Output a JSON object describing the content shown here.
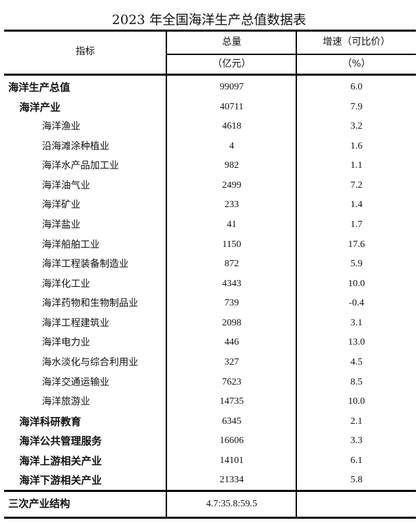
{
  "title": "2023 年全国海洋生产总值数据表",
  "headers": {
    "indicator": "指标",
    "total": "总量",
    "total_unit": "（亿元）",
    "growth": "增速（可比价）",
    "growth_unit": "（%）"
  },
  "rows": [
    {
      "name": "海洋生产总值",
      "total": "99097",
      "growth": "6.0",
      "level": 0
    },
    {
      "name": "海洋产业",
      "total": "40711",
      "growth": "7.9",
      "level": 1
    },
    {
      "name": "海洋渔业",
      "total": "4618",
      "growth": "3.2",
      "level": 2
    },
    {
      "name": "沿海滩涂种植业",
      "total": "4",
      "growth": "1.6",
      "level": 2
    },
    {
      "name": "海洋水产品加工业",
      "total": "982",
      "growth": "1.1",
      "level": 2
    },
    {
      "name": "海洋油气业",
      "total": "2499",
      "growth": "7.2",
      "level": 2
    },
    {
      "name": "海洋矿业",
      "total": "233",
      "growth": "1.4",
      "level": 2
    },
    {
      "name": "海洋盐业",
      "total": "41",
      "growth": "1.7",
      "level": 2
    },
    {
      "name": "海洋船舶工业",
      "total": "1150",
      "growth": "17.6",
      "level": 2
    },
    {
      "name": "海洋工程装备制造业",
      "total": "872",
      "growth": "5.9",
      "level": 2
    },
    {
      "name": "海洋化工业",
      "total": "4343",
      "growth": "10.0",
      "level": 2
    },
    {
      "name": "海洋药物和生物制品业",
      "total": "739",
      "growth": "-0.4",
      "level": 2
    },
    {
      "name": "海洋工程建筑业",
      "total": "2098",
      "growth": "3.1",
      "level": 2
    },
    {
      "name": "海洋电力业",
      "total": "446",
      "growth": "13.0",
      "level": 2
    },
    {
      "name": "海水淡化与综合利用业",
      "total": "327",
      "growth": "4.5",
      "level": 2
    },
    {
      "name": "海洋交通运输业",
      "total": "7623",
      "growth": "8.5",
      "level": 2
    },
    {
      "name": "海洋旅游业",
      "total": "14735",
      "growth": "10.0",
      "level": 2
    },
    {
      "name": "海洋科研教育",
      "total": "6345",
      "growth": "2.1",
      "level": 1
    },
    {
      "name": "海洋公共管理服务",
      "total": "16606",
      "growth": "3.3",
      "level": 1
    },
    {
      "name": "海洋上游相关产业",
      "total": "14101",
      "growth": "6.1",
      "level": 1
    },
    {
      "name": "海洋下游相关产业",
      "total": "21334",
      "growth": "5.8",
      "level": 1
    }
  ],
  "structure": {
    "name": "三次产业结构",
    "total": "4.7:35.8:59.5",
    "growth": ""
  }
}
